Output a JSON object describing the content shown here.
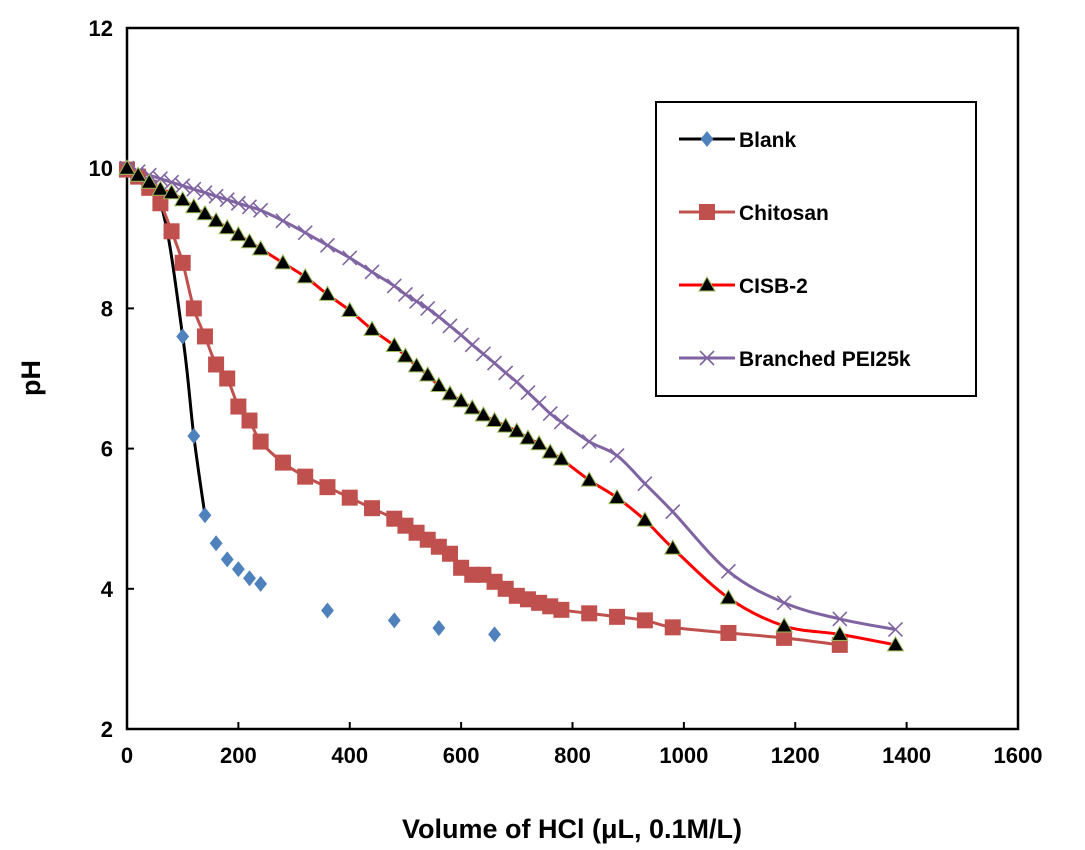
{
  "chart_data": {
    "type": "line",
    "xlabel": "Volume of HCl (μL, 0.1M/L)",
    "ylabel": "pH",
    "xlim": [
      0,
      1600
    ],
    "ylim": [
      2,
      12
    ],
    "xticks": [
      0,
      200,
      400,
      600,
      800,
      1000,
      1200,
      1400,
      1600
    ],
    "yticks": [
      2,
      4,
      6,
      8,
      10,
      12
    ],
    "grid": false,
    "legend_position": "top-right",
    "series": [
      {
        "name": "Blank",
        "color": "#000000",
        "marker": "diamond",
        "marker_color": "#4f81bd",
        "line": true,
        "line_until": 140,
        "x": [
          0,
          60,
          100,
          120,
          140,
          160,
          180,
          200,
          220,
          240,
          360,
          480,
          560,
          660
        ],
        "y": [
          9.97,
          9.5,
          7.6,
          6.18,
          5.05,
          4.65,
          4.42,
          4.28,
          4.15,
          4.07,
          3.69,
          3.55,
          3.44,
          3.35
        ]
      },
      {
        "name": "Chitosan",
        "color": "#c0504d",
        "marker": "square",
        "marker_color": "#c0504d",
        "line": true,
        "x": [
          0,
          20,
          40,
          60,
          80,
          100,
          120,
          140,
          160,
          180,
          200,
          220,
          240,
          280,
          320,
          360,
          400,
          440,
          480,
          500,
          520,
          540,
          560,
          580,
          600,
          620,
          640,
          660,
          680,
          700,
          720,
          740,
          760,
          780,
          830,
          880,
          930,
          980,
          1080,
          1180,
          1280
        ],
        "y": [
          9.98,
          9.88,
          9.72,
          9.5,
          9.1,
          8.65,
          8.0,
          7.6,
          7.2,
          7.0,
          6.6,
          6.4,
          6.1,
          5.8,
          5.6,
          5.45,
          5.3,
          5.15,
          5.0,
          4.9,
          4.8,
          4.7,
          4.6,
          4.5,
          4.3,
          4.2,
          4.2,
          4.1,
          4.0,
          3.9,
          3.85,
          3.8,
          3.75,
          3.7,
          3.65,
          3.6,
          3.55,
          3.45,
          3.37,
          3.3,
          3.2
        ]
      },
      {
        "name": "CISB-2",
        "color": "#ff0000",
        "marker": "triangle",
        "marker_color": "#000000",
        "line": true,
        "x": [
          0,
          20,
          40,
          60,
          80,
          100,
          120,
          140,
          160,
          180,
          200,
          220,
          240,
          280,
          320,
          360,
          400,
          440,
          480,
          500,
          520,
          540,
          560,
          580,
          600,
          620,
          640,
          660,
          680,
          700,
          720,
          740,
          760,
          780,
          830,
          880,
          930,
          980,
          1080,
          1180,
          1280,
          1380
        ],
        "y": [
          10.0,
          9.9,
          9.8,
          9.7,
          9.65,
          9.55,
          9.45,
          9.35,
          9.25,
          9.15,
          9.05,
          8.95,
          8.85,
          8.65,
          8.45,
          8.2,
          7.97,
          7.7,
          7.47,
          7.32,
          7.18,
          7.05,
          6.9,
          6.78,
          6.68,
          6.58,
          6.48,
          6.4,
          6.32,
          6.25,
          6.15,
          6.07,
          5.95,
          5.85,
          5.55,
          5.3,
          4.98,
          4.58,
          3.87,
          3.47,
          3.35,
          3.2
        ]
      },
      {
        "name": "Branched PEI25k",
        "color": "#8064a2",
        "marker": "x",
        "marker_color": "#8064a2",
        "line": true,
        "x": [
          0,
          20,
          40,
          60,
          80,
          100,
          120,
          140,
          160,
          180,
          200,
          220,
          240,
          280,
          320,
          360,
          400,
          440,
          480,
          500,
          520,
          540,
          560,
          580,
          600,
          620,
          640,
          660,
          680,
          700,
          720,
          740,
          760,
          780,
          830,
          880,
          930,
          980,
          1080,
          1180,
          1280,
          1380
        ],
        "y": [
          10.0,
          9.95,
          9.9,
          9.85,
          9.8,
          9.75,
          9.7,
          9.65,
          9.6,
          9.55,
          9.5,
          9.45,
          9.4,
          9.25,
          9.08,
          8.9,
          8.72,
          8.52,
          8.32,
          8.2,
          8.1,
          8.0,
          7.88,
          7.75,
          7.62,
          7.48,
          7.35,
          7.22,
          7.08,
          6.95,
          6.8,
          6.65,
          6.5,
          6.38,
          6.1,
          5.9,
          5.5,
          5.1,
          4.25,
          3.8,
          3.57,
          3.42
        ]
      }
    ]
  }
}
